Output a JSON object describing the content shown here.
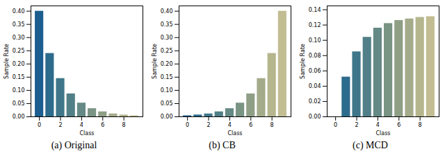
{
  "chart_data": [
    {
      "type": "bar",
      "title": "(a) Original",
      "x_label": "Class",
      "y_label": "Sample Rate",
      "x": [
        0,
        1,
        2,
        3,
        4,
        5,
        6,
        7,
        8,
        9
      ],
      "values": [
        0.4,
        0.24,
        0.145,
        0.087,
        0.052,
        0.031,
        0.019,
        0.011,
        0.007,
        0.004
      ],
      "colors": [
        "#1b5e8f",
        "#2d6b8c",
        "#3f7689",
        "#517f87",
        "#658985",
        "#7a9484",
        "#8f9f86",
        "#a4ab8a",
        "#b6b68e",
        "#c2bd93"
      ],
      "xlim": [
        -0.8,
        9.8
      ],
      "xticks": [
        0,
        2,
        4,
        6,
        8
      ],
      "ylim": [
        0,
        0.42
      ],
      "yticks": [
        {
          "value": 0,
          "label": "0.00"
        },
        0.05,
        {
          "value": 0.1,
          "label": "0.10"
        },
        0.15,
        {
          "value": 0.2,
          "label": "0.20"
        },
        0.25,
        {
          "value": 0.3,
          "label": "0.30"
        },
        0.35,
        {
          "value": 0.4,
          "label": "0.40"
        }
      ]
    },
    {
      "type": "bar",
      "title": "(b) CB",
      "x_label": "Class",
      "y_label": "Sample Rate",
      "x": [
        0,
        1,
        2,
        3,
        4,
        5,
        6,
        7,
        8,
        9
      ],
      "values": [
        0.004,
        0.007,
        0.011,
        0.019,
        0.031,
        0.052,
        0.087,
        0.145,
        0.24,
        0.4
      ],
      "colors": [
        "#1b5e8f",
        "#2d6b8c",
        "#3f7689",
        "#517f87",
        "#658985",
        "#7a9484",
        "#8f9f86",
        "#a4ab8a",
        "#b6b68e",
        "#c2bd93"
      ],
      "xlim": [
        -0.8,
        9.8
      ],
      "xticks": [
        0,
        2,
        4,
        6,
        8
      ],
      "ylim": [
        0,
        0.42
      ],
      "yticks": [
        {
          "value": 0,
          "label": "0.00"
        },
        0.05,
        {
          "value": 0.1,
          "label": "0.10"
        },
        0.15,
        {
          "value": 0.2,
          "label": "0.20"
        },
        0.25,
        {
          "value": 0.3,
          "label": "0.30"
        },
        0.35,
        {
          "value": 0.4,
          "label": "0.40"
        }
      ]
    },
    {
      "type": "bar",
      "title": "(c) MCD",
      "x_label": "Class",
      "y_label": "Sample Rate",
      "x": [
        0,
        1,
        2,
        3,
        4,
        5,
        6,
        7,
        8,
        9
      ],
      "values": [
        0,
        0.052,
        0.085,
        0.104,
        0.116,
        0.122,
        0.126,
        0.128,
        0.13,
        0.131
      ],
      "colors": [
        "#1b5e8f",
        "#2d6b8c",
        "#3f7689",
        "#517f87",
        "#658985",
        "#7a9484",
        "#8f9f86",
        "#a4ab8a",
        "#b6b68e",
        "#c2bd93"
      ],
      "xlim": [
        -0.8,
        9.8
      ],
      "xticks": [
        0,
        2,
        4,
        6,
        8
      ],
      "ylim": [
        0,
        0.145
      ],
      "yticks": [
        {
          "value": 0,
          "label": "0.00"
        },
        0.02,
        0.04,
        0.06,
        0.08,
        {
          "value": 0.1,
          "label": "0.10"
        },
        0.12,
        0.14
      ]
    }
  ]
}
